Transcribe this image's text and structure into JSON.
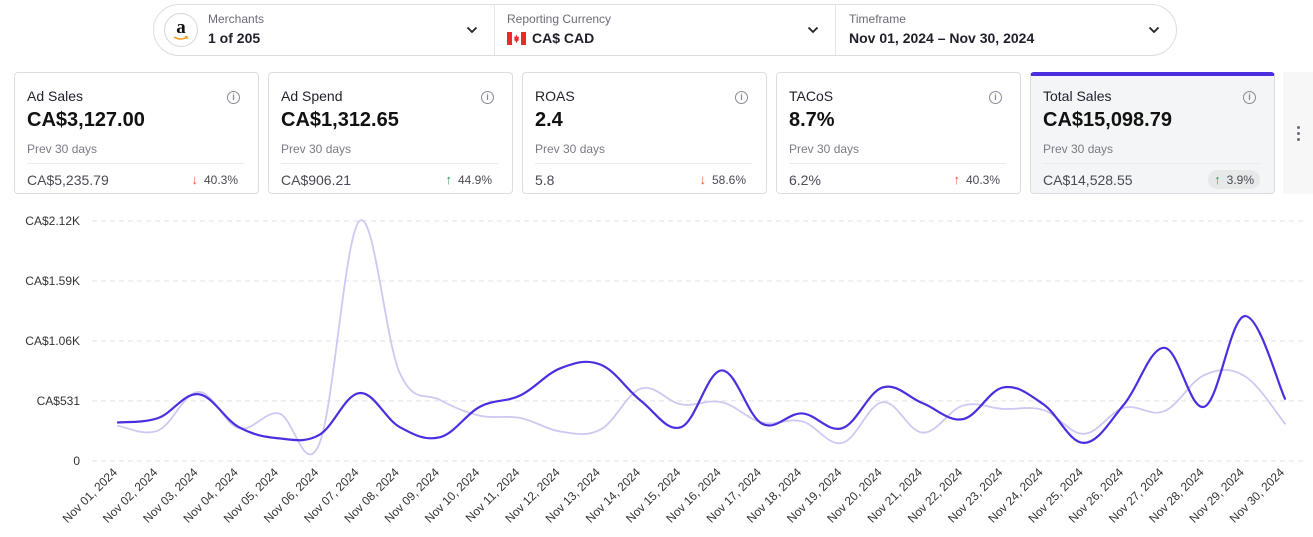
{
  "filters": {
    "merchant": {
      "label": "Merchants",
      "value": "1 of 205",
      "logo_letter": "a",
      "icon": "amazon-logo"
    },
    "currency": {
      "label": "Reporting Currency",
      "value": "CA$ CAD",
      "icon": "canada-flag"
    },
    "timeframe": {
      "label": "Timeframe",
      "value": "Nov 01, 2024 – Nov 30, 2024"
    }
  },
  "kpis": [
    {
      "title": "Ad Sales",
      "value": "CA$3,127.00",
      "prev_label": "Prev 30 days",
      "prev": "CA$5,235.79",
      "change": "40.3%",
      "direction": "down",
      "tone": "bad"
    },
    {
      "title": "Ad Spend",
      "value": "CA$1,312.65",
      "prev_label": "Prev 30 days",
      "prev": "CA$906.21",
      "change": "44.9%",
      "direction": "up",
      "tone": "good"
    },
    {
      "title": "ROAS",
      "value": "2.4",
      "prev_label": "Prev 30 days",
      "prev": "5.8",
      "change": "58.6%",
      "direction": "down",
      "tone": "bad"
    },
    {
      "title": "TACoS",
      "value": "8.7%",
      "prev_label": "Prev 30 days",
      "prev": "6.2%",
      "change": "40.3%",
      "direction": "up",
      "tone": "bad"
    },
    {
      "title": "Total Sales",
      "value": "CA$15,098.79",
      "prev_label": "Prev 30 days",
      "prev": "CA$14,528.55",
      "change": "3.9%",
      "direction": "up",
      "tone": "good",
      "active": true
    }
  ],
  "colors": {
    "current_line": "#4a2ee0",
    "previous_line": "#cfc8f2",
    "up_good": "#2e9e57",
    "change_bad": "#e45b2c",
    "accent": "#4a2ee0"
  },
  "chart_data": {
    "type": "line",
    "title": "",
    "xlabel": "",
    "ylabel": "",
    "ylim": [
      0,
      2120
    ],
    "y_ticks": [
      0,
      531,
      1060,
      1590,
      2120
    ],
    "y_tick_labels": [
      "0",
      "CA$531",
      "CA$1.06K",
      "CA$1.59K",
      "CA$2.12K"
    ],
    "categories": [
      "Nov 01, 2024",
      "Nov 02, 2024",
      "Nov 03, 2024",
      "Nov 04, 2024",
      "Nov 05, 2024",
      "Nov 06, 2024",
      "Nov 07, 2024",
      "Nov 08, 2024",
      "Nov 09, 2024",
      "Nov 10, 2024",
      "Nov 11, 2024",
      "Nov 12, 2024",
      "Nov 13, 2024",
      "Nov 14, 2024",
      "Nov 15, 2024",
      "Nov 16, 2024",
      "Nov 17, 2024",
      "Nov 18, 2024",
      "Nov 19, 2024",
      "Nov 20, 2024",
      "Nov 21, 2024",
      "Nov 22, 2024",
      "Nov 23, 2024",
      "Nov 24, 2024",
      "Nov 25, 2024",
      "Nov 26, 2024",
      "Nov 27, 2024",
      "Nov 28, 2024",
      "Nov 29, 2024",
      "Nov 30, 2024"
    ],
    "series": [
      {
        "name": "Total Sales",
        "values": [
          340,
          380,
          590,
          300,
          200,
          230,
          600,
          300,
          210,
          480,
          580,
          820,
          850,
          530,
          300,
          800,
          330,
          420,
          290,
          650,
          510,
          370,
          650,
          500,
          160,
          500,
          1000,
          480,
          1280,
          550
        ]
      },
      {
        "name": "Total Sales (Prev 30 days)",
        "values": [
          310,
          270,
          610,
          290,
          420,
          150,
          2120,
          780,
          540,
          400,
          380,
          260,
          280,
          640,
          500,
          520,
          340,
          350,
          160,
          520,
          250,
          490,
          460,
          450,
          240,
          470,
          440,
          760,
          750,
          330
        ]
      }
    ]
  }
}
